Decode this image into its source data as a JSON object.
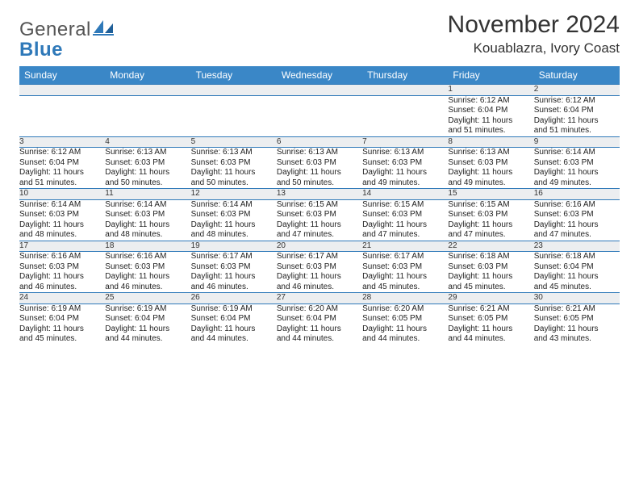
{
  "logo": {
    "word1": "General",
    "word2": "Blue"
  },
  "title": "November 2024",
  "location": "Kouablazra, Ivory Coast",
  "colors": {
    "header_bg": "#3a87c7",
    "header_text": "#ffffff",
    "rule": "#2f79b9",
    "daynum_bg": "#eceef0",
    "text": "#222222",
    "page_bg": "#ffffff",
    "logo_gray": "#555555",
    "logo_blue": "#2f79b9"
  },
  "typography": {
    "title_fontsize": 30,
    "location_fontsize": 17,
    "header_fontsize": 12,
    "daynum_fontsize": 11,
    "body_fontsize": 10,
    "font_family": "Arial"
  },
  "day_headers": [
    "Sunday",
    "Monday",
    "Tuesday",
    "Wednesday",
    "Thursday",
    "Friday",
    "Saturday"
  ],
  "weeks": [
    [
      null,
      null,
      null,
      null,
      null,
      {
        "n": "1",
        "sunrise": "Sunrise: 6:12 AM",
        "sunset": "Sunset: 6:04 PM",
        "day1": "Daylight: 11 hours",
        "day2": "and 51 minutes."
      },
      {
        "n": "2",
        "sunrise": "Sunrise: 6:12 AM",
        "sunset": "Sunset: 6:04 PM",
        "day1": "Daylight: 11 hours",
        "day2": "and 51 minutes."
      }
    ],
    [
      {
        "n": "3",
        "sunrise": "Sunrise: 6:12 AM",
        "sunset": "Sunset: 6:04 PM",
        "day1": "Daylight: 11 hours",
        "day2": "and 51 minutes."
      },
      {
        "n": "4",
        "sunrise": "Sunrise: 6:13 AM",
        "sunset": "Sunset: 6:03 PM",
        "day1": "Daylight: 11 hours",
        "day2": "and 50 minutes."
      },
      {
        "n": "5",
        "sunrise": "Sunrise: 6:13 AM",
        "sunset": "Sunset: 6:03 PM",
        "day1": "Daylight: 11 hours",
        "day2": "and 50 minutes."
      },
      {
        "n": "6",
        "sunrise": "Sunrise: 6:13 AM",
        "sunset": "Sunset: 6:03 PM",
        "day1": "Daylight: 11 hours",
        "day2": "and 50 minutes."
      },
      {
        "n": "7",
        "sunrise": "Sunrise: 6:13 AM",
        "sunset": "Sunset: 6:03 PM",
        "day1": "Daylight: 11 hours",
        "day2": "and 49 minutes."
      },
      {
        "n": "8",
        "sunrise": "Sunrise: 6:13 AM",
        "sunset": "Sunset: 6:03 PM",
        "day1": "Daylight: 11 hours",
        "day2": "and 49 minutes."
      },
      {
        "n": "9",
        "sunrise": "Sunrise: 6:14 AM",
        "sunset": "Sunset: 6:03 PM",
        "day1": "Daylight: 11 hours",
        "day2": "and 49 minutes."
      }
    ],
    [
      {
        "n": "10",
        "sunrise": "Sunrise: 6:14 AM",
        "sunset": "Sunset: 6:03 PM",
        "day1": "Daylight: 11 hours",
        "day2": "and 48 minutes."
      },
      {
        "n": "11",
        "sunrise": "Sunrise: 6:14 AM",
        "sunset": "Sunset: 6:03 PM",
        "day1": "Daylight: 11 hours",
        "day2": "and 48 minutes."
      },
      {
        "n": "12",
        "sunrise": "Sunrise: 6:14 AM",
        "sunset": "Sunset: 6:03 PM",
        "day1": "Daylight: 11 hours",
        "day2": "and 48 minutes."
      },
      {
        "n": "13",
        "sunrise": "Sunrise: 6:15 AM",
        "sunset": "Sunset: 6:03 PM",
        "day1": "Daylight: 11 hours",
        "day2": "and 47 minutes."
      },
      {
        "n": "14",
        "sunrise": "Sunrise: 6:15 AM",
        "sunset": "Sunset: 6:03 PM",
        "day1": "Daylight: 11 hours",
        "day2": "and 47 minutes."
      },
      {
        "n": "15",
        "sunrise": "Sunrise: 6:15 AM",
        "sunset": "Sunset: 6:03 PM",
        "day1": "Daylight: 11 hours",
        "day2": "and 47 minutes."
      },
      {
        "n": "16",
        "sunrise": "Sunrise: 6:16 AM",
        "sunset": "Sunset: 6:03 PM",
        "day1": "Daylight: 11 hours",
        "day2": "and 47 minutes."
      }
    ],
    [
      {
        "n": "17",
        "sunrise": "Sunrise: 6:16 AM",
        "sunset": "Sunset: 6:03 PM",
        "day1": "Daylight: 11 hours",
        "day2": "and 46 minutes."
      },
      {
        "n": "18",
        "sunrise": "Sunrise: 6:16 AM",
        "sunset": "Sunset: 6:03 PM",
        "day1": "Daylight: 11 hours",
        "day2": "and 46 minutes."
      },
      {
        "n": "19",
        "sunrise": "Sunrise: 6:17 AM",
        "sunset": "Sunset: 6:03 PM",
        "day1": "Daylight: 11 hours",
        "day2": "and 46 minutes."
      },
      {
        "n": "20",
        "sunrise": "Sunrise: 6:17 AM",
        "sunset": "Sunset: 6:03 PM",
        "day1": "Daylight: 11 hours",
        "day2": "and 46 minutes."
      },
      {
        "n": "21",
        "sunrise": "Sunrise: 6:17 AM",
        "sunset": "Sunset: 6:03 PM",
        "day1": "Daylight: 11 hours",
        "day2": "and 45 minutes."
      },
      {
        "n": "22",
        "sunrise": "Sunrise: 6:18 AM",
        "sunset": "Sunset: 6:03 PM",
        "day1": "Daylight: 11 hours",
        "day2": "and 45 minutes."
      },
      {
        "n": "23",
        "sunrise": "Sunrise: 6:18 AM",
        "sunset": "Sunset: 6:04 PM",
        "day1": "Daylight: 11 hours",
        "day2": "and 45 minutes."
      }
    ],
    [
      {
        "n": "24",
        "sunrise": "Sunrise: 6:19 AM",
        "sunset": "Sunset: 6:04 PM",
        "day1": "Daylight: 11 hours",
        "day2": "and 45 minutes."
      },
      {
        "n": "25",
        "sunrise": "Sunrise: 6:19 AM",
        "sunset": "Sunset: 6:04 PM",
        "day1": "Daylight: 11 hours",
        "day2": "and 44 minutes."
      },
      {
        "n": "26",
        "sunrise": "Sunrise: 6:19 AM",
        "sunset": "Sunset: 6:04 PM",
        "day1": "Daylight: 11 hours",
        "day2": "and 44 minutes."
      },
      {
        "n": "27",
        "sunrise": "Sunrise: 6:20 AM",
        "sunset": "Sunset: 6:04 PM",
        "day1": "Daylight: 11 hours",
        "day2": "and 44 minutes."
      },
      {
        "n": "28",
        "sunrise": "Sunrise: 6:20 AM",
        "sunset": "Sunset: 6:05 PM",
        "day1": "Daylight: 11 hours",
        "day2": "and 44 minutes."
      },
      {
        "n": "29",
        "sunrise": "Sunrise: 6:21 AM",
        "sunset": "Sunset: 6:05 PM",
        "day1": "Daylight: 11 hours",
        "day2": "and 44 minutes."
      },
      {
        "n": "30",
        "sunrise": "Sunrise: 6:21 AM",
        "sunset": "Sunset: 6:05 PM",
        "day1": "Daylight: 11 hours",
        "day2": "and 43 minutes."
      }
    ]
  ]
}
